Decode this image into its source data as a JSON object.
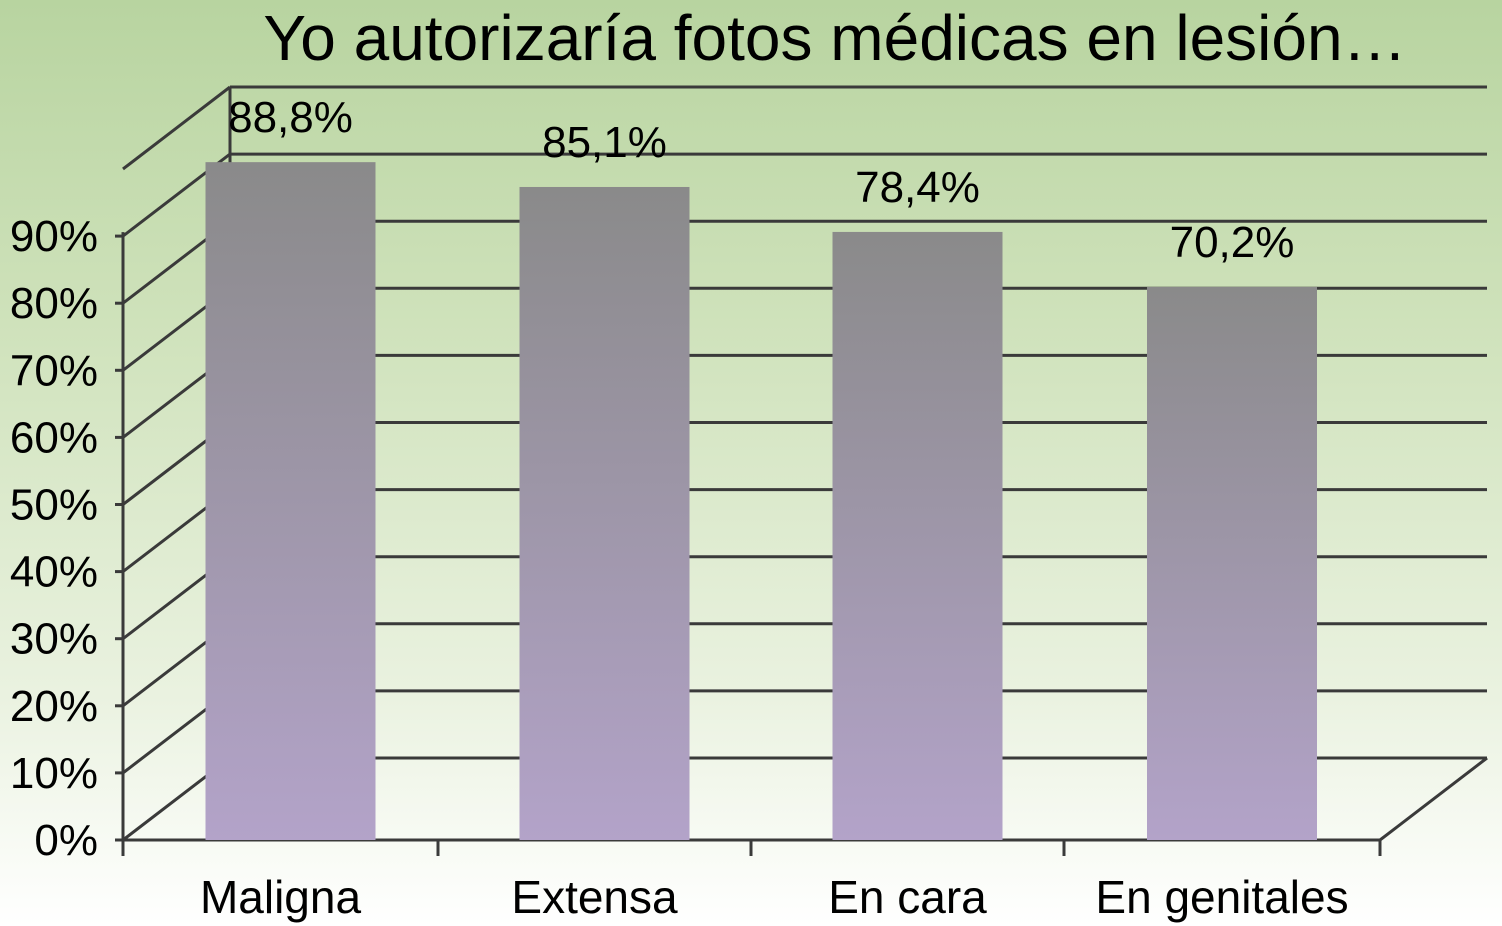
{
  "chart_data": {
    "type": "bar",
    "title": "Yo autorizaría fotos médicas en lesión…",
    "categories": [
      "Maligna",
      "Extensa",
      "En cara",
      "En genitales"
    ],
    "values": [
      88.8,
      85.1,
      78.4,
      70.2
    ],
    "data_labels": [
      "88,8%",
      "85,1%",
      "78,4%",
      "70,2%"
    ],
    "y_ticks": [
      "0%",
      "10%",
      "20%",
      "30%",
      "40%",
      "50%",
      "60%",
      "70%",
      "80%",
      "90%"
    ],
    "ylim": [
      0,
      100
    ],
    "grid": true,
    "legend": "none",
    "colors": {
      "bar_top": "#8a8a8a",
      "bar_bottom": "#b3a3c9",
      "grid": "#3a3a3a"
    }
  }
}
